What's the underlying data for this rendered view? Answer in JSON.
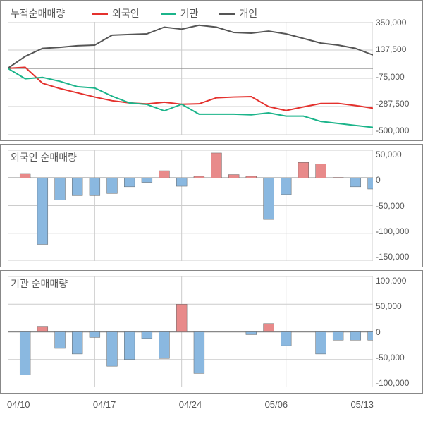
{
  "x_axis": {
    "labels": [
      "04/10",
      "04/17",
      "04/24",
      "05/06",
      "05/13"
    ],
    "tick_positions": [
      0,
      5,
      10,
      16,
      21
    ],
    "n_points": 22
  },
  "panel1": {
    "type": "line",
    "title": "누적순매매량",
    "legend": [
      {
        "label": "외국인",
        "color": "#e4312d"
      },
      {
        "label": "기관",
        "color": "#1bb48a"
      },
      {
        "label": "개인",
        "color": "#555555"
      }
    ],
    "ylim": [
      -500000,
      350000
    ],
    "yticks": [
      350000,
      137500,
      -75000,
      -287500,
      -500000
    ],
    "ytick_labels": [
      "350,000",
      "137,500",
      "-75,000",
      "-287,500",
      "-500,000"
    ],
    "grid_color": "#cccccc",
    "zero_line_color": "#888888",
    "series": {
      "foreign": {
        "color": "#e4312d",
        "line_width": 2,
        "values": [
          0,
          8000,
          -112000,
          -152000,
          -184000,
          -216000,
          -244000,
          -260000,
          -268000,
          -255000,
          -270000,
          -267000,
          -222000,
          -216000,
          -213000,
          -288000,
          -318000,
          -290000,
          -265000,
          -264000,
          -280000,
          -300000
        ]
      },
      "institution": {
        "color": "#1bb48a",
        "line_width": 2,
        "values": [
          0,
          -78000,
          -68000,
          -98000,
          -138000,
          -148000,
          -210000,
          -260000,
          -272000,
          -320000,
          -270000,
          -345000,
          -345000,
          -345000,
          -350000,
          -335000,
          -360000,
          -360000,
          -400000,
          -415000,
          -430000,
          -445000
        ]
      },
      "individual": {
        "color": "#555555",
        "line_width": 2,
        "values": [
          0,
          90000,
          150000,
          158000,
          170000,
          175000,
          250000,
          255000,
          260000,
          310000,
          295000,
          325000,
          310000,
          270000,
          265000,
          280000,
          260000,
          225000,
          190000,
          175000,
          150000,
          100000
        ]
      }
    }
  },
  "panel2": {
    "type": "bar",
    "title": "외국인 순매매량",
    "ylim": [
      -150000,
      50000
    ],
    "yticks": [
      50000,
      0,
      -50000,
      -100000,
      -150000
    ],
    "ytick_labels": [
      "50,000",
      "0",
      "-50,000",
      "-100,000",
      "-150,000"
    ],
    "grid_color": "#cccccc",
    "zero_line_color": "#888888",
    "bar_pos_color": "#e88a8a",
    "bar_neg_color": "#8ab8e0",
    "bar_border_color": "#666666",
    "bar_width": 0.6,
    "values": [
      0,
      8000,
      -120000,
      -40000,
      -32000,
      -32000,
      -28000,
      -16000,
      -8000,
      13000,
      -15000,
      3000,
      45000,
      6000,
      3000,
      -75000,
      -30000,
      28000,
      25000,
      1000,
      -16000,
      -20000
    ]
  },
  "panel3": {
    "type": "bar",
    "title": "기관 순매매량",
    "ylim": [
      -100000,
      100000
    ],
    "yticks": [
      100000,
      50000,
      0,
      -50000,
      -100000
    ],
    "ytick_labels": [
      "100,000",
      "50,000",
      "0",
      "-50,000",
      "-100,000"
    ],
    "grid_color": "#cccccc",
    "zero_line_color": "#888888",
    "bar_pos_color": "#e88a8a",
    "bar_neg_color": "#8ab8e0",
    "bar_border_color": "#666666",
    "bar_width": 0.6,
    "values": [
      0,
      -78000,
      10000,
      -30000,
      -40000,
      -10000,
      -62000,
      -50000,
      -12000,
      -48000,
      50000,
      -75000,
      0,
      0,
      -5000,
      15000,
      -25000,
      0,
      -40000,
      -15000,
      -15000,
      -15000
    ]
  }
}
